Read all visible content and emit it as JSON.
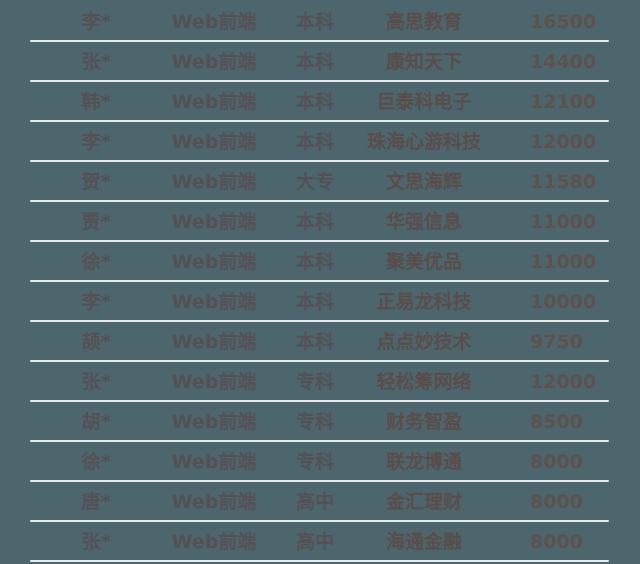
{
  "colors": {
    "background": "#4d666e",
    "separator": "#e9edee",
    "text_primary": "#545054",
    "text_company": "#5a4c49",
    "text_salary": "#5d514e"
  },
  "chart_data": {
    "type": "table",
    "grid": "horizontal-separators-only",
    "header_visible": false,
    "rows": [
      [
        "李*",
        "Web前端",
        "本科",
        "高思教育",
        "16500"
      ],
      [
        "张*",
        "Web前端",
        "本科",
        "康知天下",
        "14400"
      ],
      [
        "韩*",
        "Web前端",
        "本科",
        "巨泰科电子",
        "12100"
      ],
      [
        "李*",
        "Web前端",
        "本科",
        "珠海心游科技",
        "12000"
      ],
      [
        "贺*",
        "Web前端",
        "大专",
        "文思海辉",
        "11580"
      ],
      [
        "贾*",
        "Web前端",
        "本科",
        "华强信息",
        "11000"
      ],
      [
        "徐*",
        "Web前端",
        "本科",
        "聚美优品",
        "11000"
      ],
      [
        "李*",
        "Web前端",
        "本科",
        "正易龙科技",
        "10000"
      ],
      [
        "颉*",
        "Web前端",
        "本科",
        "点点妙技术",
        "9750"
      ],
      [
        "张*",
        "Web前端",
        "专科",
        "轻松筹网络",
        "12000"
      ],
      [
        "胡*",
        "Web前端",
        "专科",
        "财务智盈",
        "8500"
      ],
      [
        "徐*",
        "Web前端",
        "专科",
        "联龙博通",
        "8000"
      ],
      [
        "唐*",
        "Web前端",
        "高中",
        "金汇理财",
        "8000"
      ],
      [
        "张*",
        "Web前端",
        "高中",
        "海通金融",
        "8000"
      ]
    ]
  }
}
